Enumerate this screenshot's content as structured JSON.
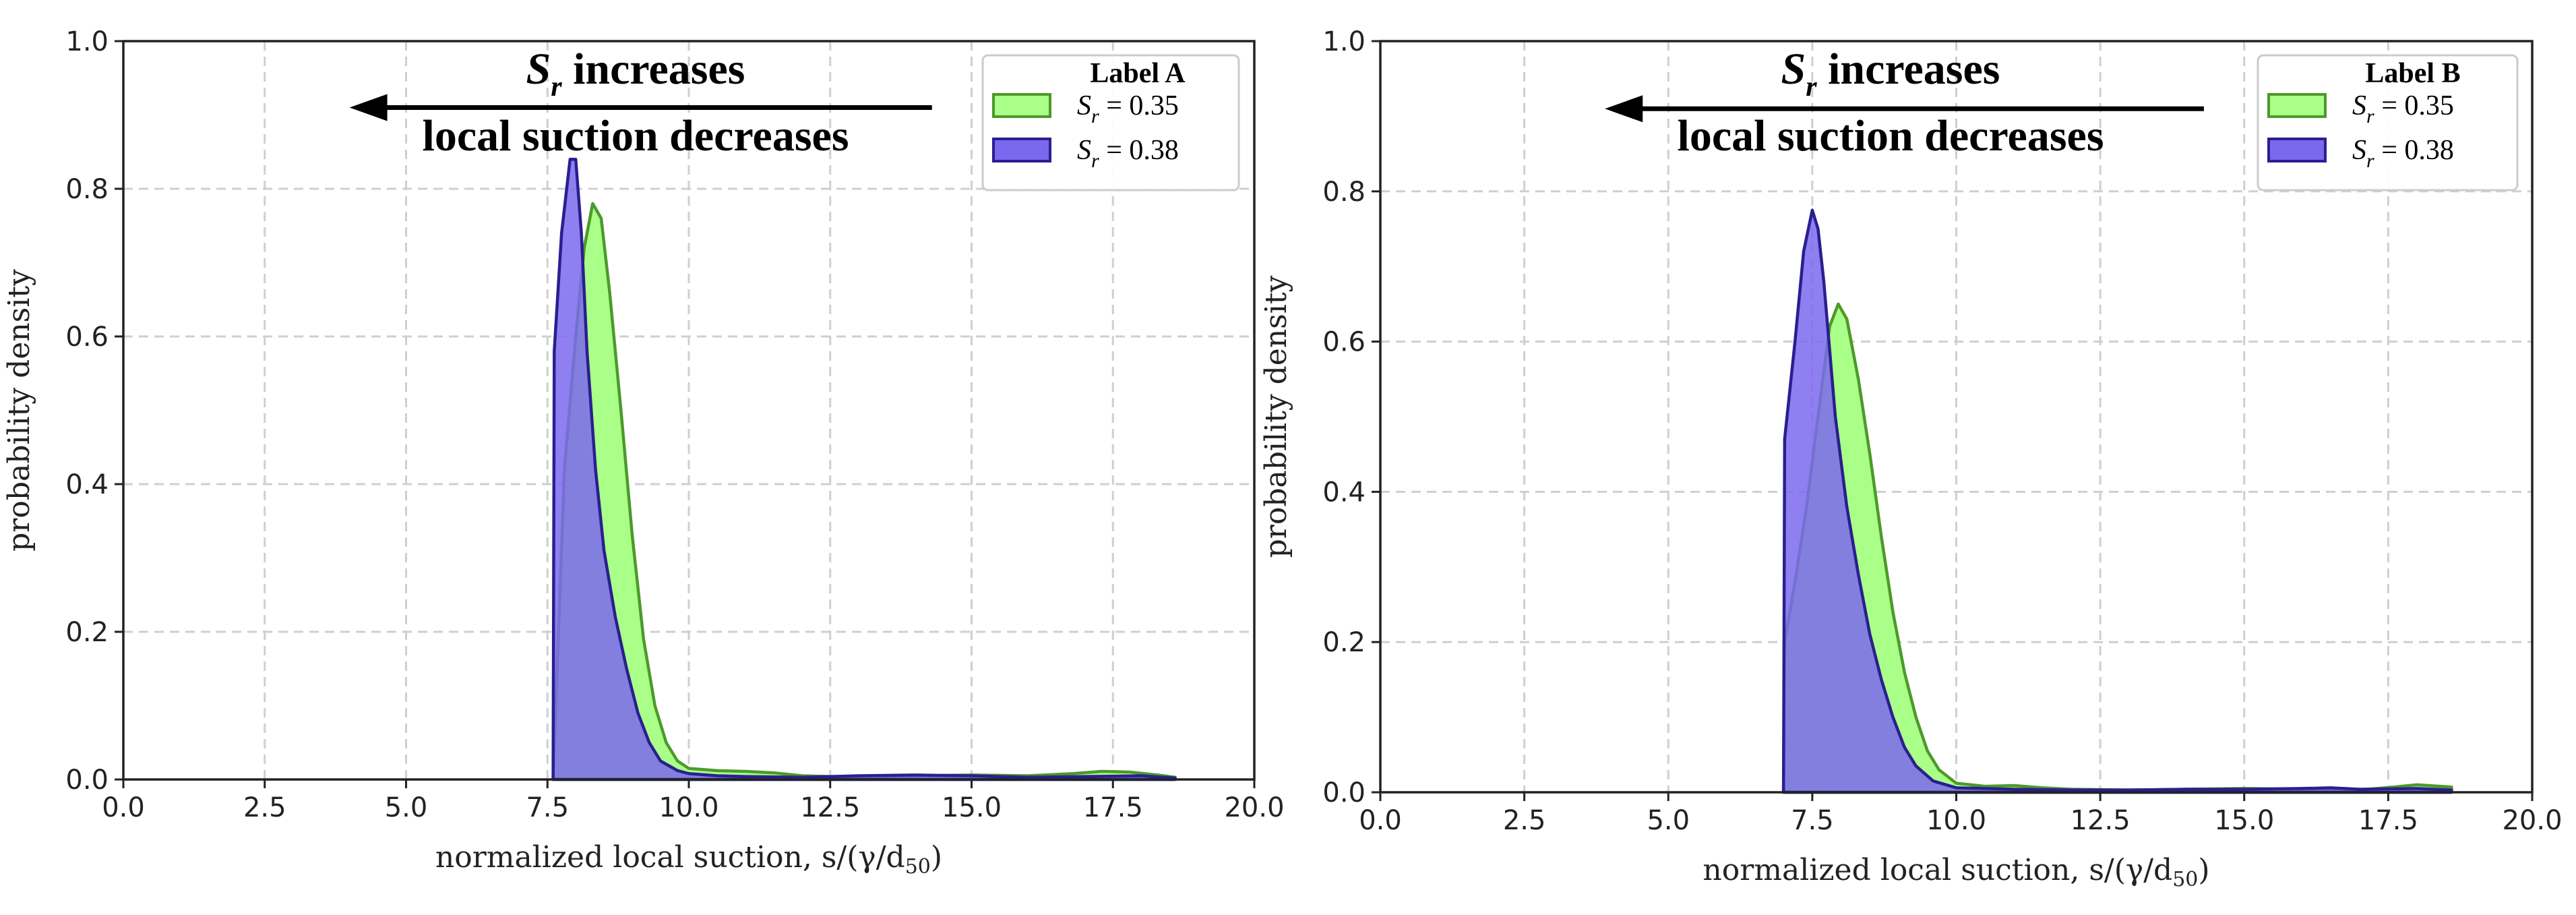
{
  "chart_data": [
    {
      "type": "area",
      "legend_title": "Label A",
      "legend_position": "top-right",
      "xlabel": "normalized local suction, s/(γ/d",
      "xlabel_sub": "50",
      "xlabel_close": ")",
      "ylabel": "probability density",
      "xlim": [
        0,
        20
      ],
      "ylim": [
        0,
        1.0
      ],
      "xticks": [
        "0.0",
        "2.5",
        "5.0",
        "7.5",
        "10.0",
        "12.5",
        "15.0",
        "17.5",
        "20.0"
      ],
      "yticks": [
        "0.0",
        "0.2",
        "0.4",
        "0.6",
        "0.8",
        "1.0"
      ],
      "grid": true,
      "annotation": {
        "line1_symbol": "S",
        "line1_sub": "r",
        "line1_text": " increases",
        "line2": "local suction decreases",
        "arrow_from": [
          14.3,
          0.91
        ],
        "arrow_to": [
          4.0,
          0.91
        ]
      },
      "series": [
        {
          "symbol": "S",
          "sub": "r",
          "label": " = 0.35",
          "fill": "#aaff88",
          "stroke": "#4c9a2a",
          "x": [
            7.6,
            7.8,
            8.0,
            8.15,
            8.3,
            8.45,
            8.6,
            8.8,
            9.0,
            9.2,
            9.4,
            9.6,
            9.8,
            10.0,
            10.5,
            11.0,
            11.5,
            12.0,
            13.0,
            14.0,
            15.0,
            16.0,
            16.8,
            17.3,
            17.8,
            18.3,
            18.6
          ],
          "y": [
            0.0,
            0.42,
            0.6,
            0.72,
            0.78,
            0.76,
            0.66,
            0.5,
            0.33,
            0.19,
            0.1,
            0.05,
            0.025,
            0.015,
            0.012,
            0.011,
            0.009,
            0.005,
            0.003,
            0.005,
            0.006,
            0.005,
            0.008,
            0.011,
            0.01,
            0.006,
            0.003
          ]
        },
        {
          "symbol": "S",
          "sub": "r",
          "label": " = 0.38",
          "fill": "#7b68ee",
          "stroke": "#2a1f8f",
          "x": [
            7.6,
            7.62,
            7.75,
            7.9,
            8.0,
            8.1,
            8.2,
            8.35,
            8.5,
            8.7,
            8.9,
            9.1,
            9.3,
            9.5,
            9.8,
            10.0,
            10.5,
            11.0,
            12.0,
            13.0,
            14.0,
            15.0,
            16.0,
            17.0,
            18.0,
            18.6
          ],
          "y": [
            0.0,
            0.58,
            0.74,
            0.84,
            0.84,
            0.74,
            0.58,
            0.42,
            0.31,
            0.22,
            0.15,
            0.09,
            0.05,
            0.025,
            0.012,
            0.008,
            0.005,
            0.004,
            0.003,
            0.005,
            0.006,
            0.005,
            0.003,
            0.004,
            0.005,
            0.002
          ]
        }
      ]
    },
    {
      "type": "area",
      "legend_title": "Label B",
      "legend_position": "top-right",
      "xlabel": "normalized local suction, s/(γ/d",
      "xlabel_sub": "50",
      "xlabel_close": ")",
      "ylabel": "probability density",
      "xlim": [
        0,
        20
      ],
      "ylim": [
        0,
        1.0
      ],
      "xticks": [
        "0.0",
        "2.5",
        "5.0",
        "7.5",
        "10.0",
        "12.5",
        "15.0",
        "17.5",
        "20.0"
      ],
      "yticks": [
        "0.0",
        "0.2",
        "0.4",
        "0.6",
        "0.8",
        "1.0"
      ],
      "grid": true,
      "annotation": {
        "line1_symbol": "S",
        "line1_sub": "r",
        "line1_text": " increases",
        "line2": "local suction decreases",
        "arrow_from": [
          14.3,
          0.91
        ],
        "arrow_to": [
          3.9,
          0.91
        ]
      },
      "series": [
        {
          "symbol": "S",
          "sub": "r",
          "label": " = 0.35",
          "fill": "#aaff88",
          "stroke": "#4c9a2a",
          "x": [
            7.0,
            7.02,
            7.2,
            7.4,
            7.6,
            7.8,
            7.95,
            8.1,
            8.3,
            8.5,
            8.7,
            8.9,
            9.1,
            9.3,
            9.5,
            9.7,
            10.0,
            10.5,
            11.0,
            11.5,
            12.0,
            13.0,
            14.0,
            15.0,
            16.0,
            17.0,
            17.6,
            18.0,
            18.6
          ],
          "y": [
            0.0,
            0.2,
            0.28,
            0.38,
            0.5,
            0.62,
            0.65,
            0.63,
            0.55,
            0.45,
            0.34,
            0.24,
            0.16,
            0.1,
            0.055,
            0.03,
            0.012,
            0.008,
            0.009,
            0.006,
            0.004,
            0.003,
            0.004,
            0.005,
            0.004,
            0.003,
            0.007,
            0.01,
            0.007
          ]
        },
        {
          "symbol": "S",
          "sub": "r",
          "label": " = 0.38",
          "fill": "#7b68ee",
          "stroke": "#2a1f8f",
          "x": [
            7.0,
            7.02,
            7.2,
            7.35,
            7.5,
            7.6,
            7.7,
            7.8,
            7.9,
            8.1,
            8.3,
            8.5,
            8.7,
            8.9,
            9.1,
            9.3,
            9.6,
            10.0,
            10.5,
            11.0,
            12.0,
            13.0,
            14.0,
            15.0,
            16.0,
            16.5,
            17.0,
            18.0,
            18.6
          ],
          "y": [
            0.0,
            0.47,
            0.6,
            0.72,
            0.775,
            0.75,
            0.68,
            0.59,
            0.5,
            0.38,
            0.29,
            0.21,
            0.15,
            0.1,
            0.06,
            0.035,
            0.015,
            0.006,
            0.005,
            0.004,
            0.003,
            0.003,
            0.004,
            0.004,
            0.005,
            0.006,
            0.004,
            0.005,
            0.003
          ]
        }
      ]
    }
  ]
}
